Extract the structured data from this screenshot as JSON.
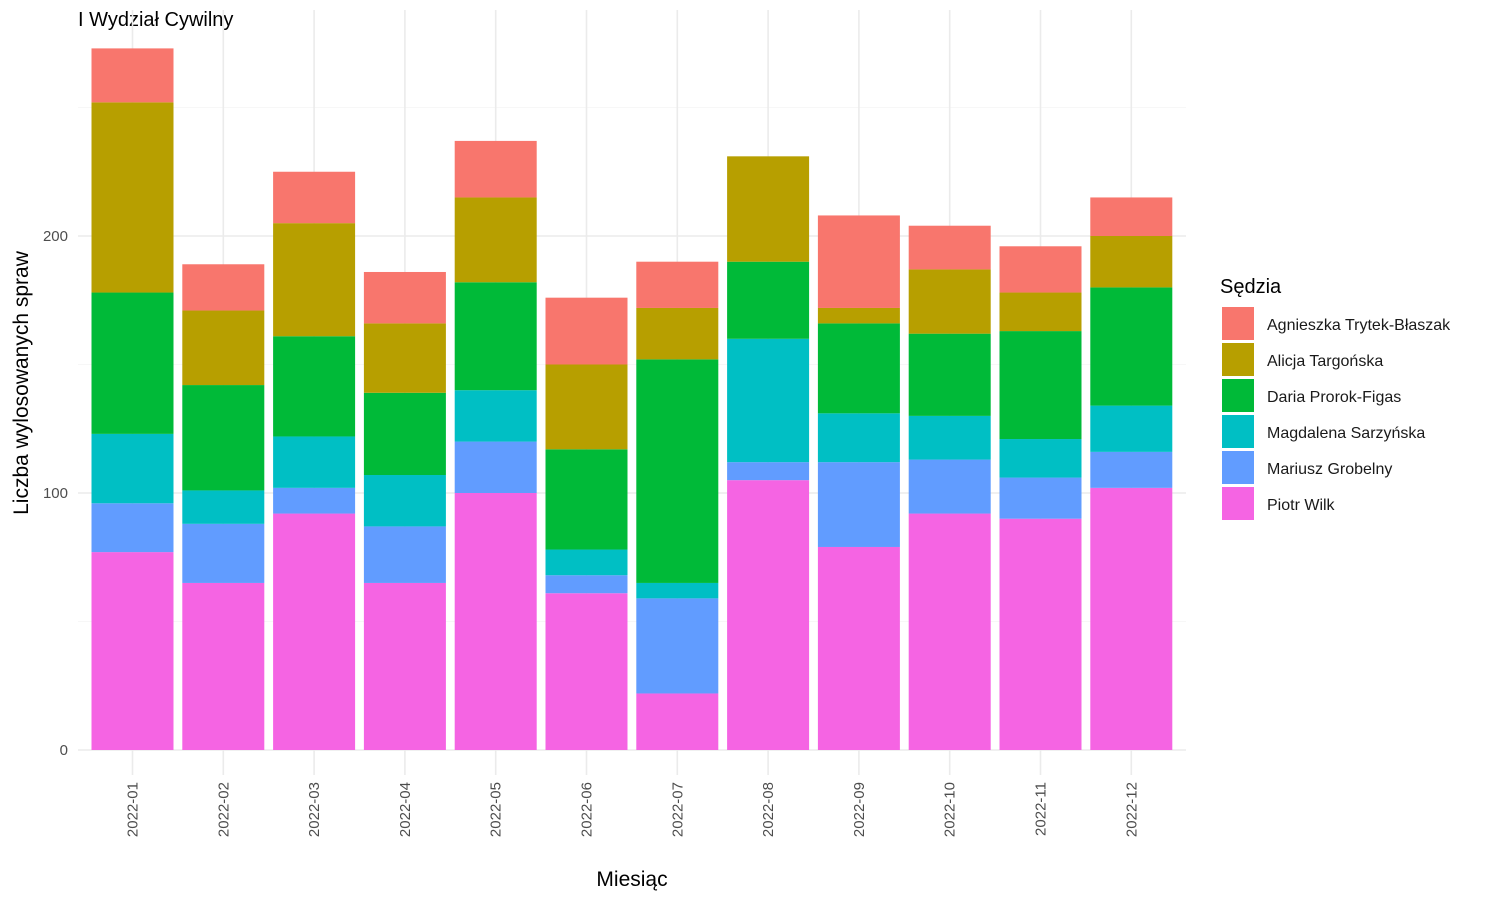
{
  "chart_data": {
    "type": "bar",
    "stacked": true,
    "title": "I Wydział Cywilny",
    "xlabel": "Miesiąc",
    "ylabel": "Liczba wylosowanych spraw",
    "ylim": [
      0,
      280
    ],
    "yticks": [
      0,
      100,
      200
    ],
    "legend_title": "Sędzia",
    "legend_position": "right",
    "grid": true,
    "categories": [
      "2022-01",
      "2022-02",
      "2022-03",
      "2022-04",
      "2022-05",
      "2022-06",
      "2022-07",
      "2022-08",
      "2022-09",
      "2022-10",
      "2022-11",
      "2022-12"
    ],
    "series": [
      {
        "name": "Piotr Wilk",
        "color": "#F564E3",
        "values": [
          77,
          65,
          92,
          65,
          100,
          61,
          22,
          105,
          79,
          92,
          90,
          102
        ]
      },
      {
        "name": "Mariusz Grobelny",
        "color": "#619CFF",
        "values": [
          19,
          23,
          10,
          22,
          20,
          7,
          37,
          7,
          33,
          21,
          16,
          14
        ]
      },
      {
        "name": "Magdalena Sarzyńska",
        "color": "#00BFC4",
        "values": [
          27,
          13,
          20,
          20,
          20,
          10,
          6,
          48,
          19,
          17,
          15,
          18
        ]
      },
      {
        "name": "Daria Prorok-Figas",
        "color": "#00BA38",
        "values": [
          55,
          41,
          39,
          32,
          42,
          39,
          87,
          30,
          35,
          32,
          42,
          46
        ]
      },
      {
        "name": "Alicja Targońska",
        "color": "#B79F00",
        "values": [
          74,
          29,
          44,
          27,
          33,
          33,
          20,
          41,
          6,
          25,
          15,
          20
        ]
      },
      {
        "name": "Agnieszka Trytek-Błaszak",
        "color": "#F8766D",
        "values": [
          21,
          18,
          20,
          20,
          22,
          26,
          18,
          0,
          36,
          17,
          18,
          15
        ]
      }
    ],
    "legend_order": [
      "Agnieszka Trytek-Błaszak",
      "Alicja Targońska",
      "Daria Prorok-Figas",
      "Magdalena Sarzyńska",
      "Mariusz Grobelny",
      "Piotr Wilk"
    ]
  }
}
